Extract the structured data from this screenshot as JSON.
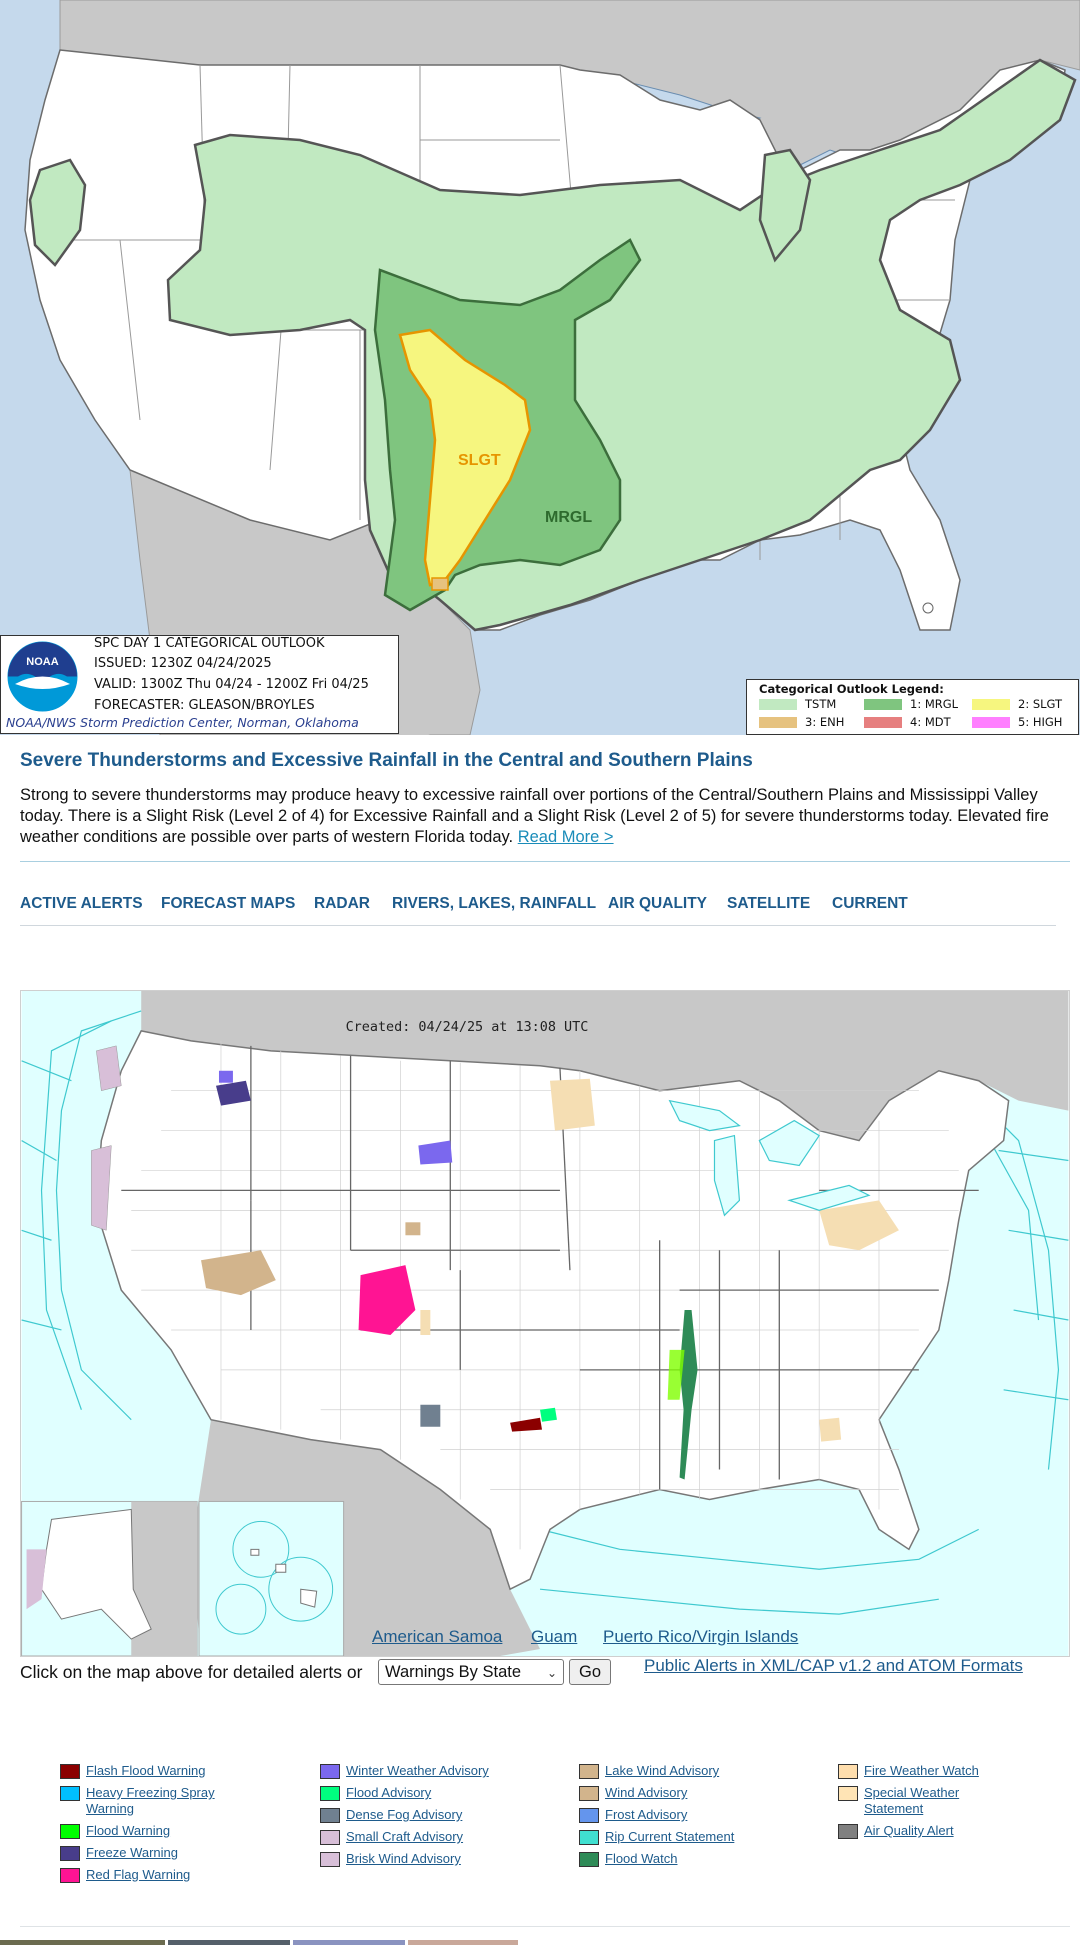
{
  "spc": {
    "logo_text": "NOAA",
    "title": "SPC DAY 1 CATEGORICAL OUTLOOK",
    "issued": "ISSUED: 1230Z 04/24/2025",
    "valid": "VALID: 1300Z Thu 04/24 - 1200Z Fri 04/25",
    "forecaster": "FORECASTER: GLEASON/BROYLES",
    "credit": "NOAA/NWS Storm Prediction Center, Norman, Oklahoma",
    "map_labels": {
      "slgt": "SLGT",
      "mrgl": "MRGL"
    },
    "legend": {
      "title": "Categorical Outlook Legend:",
      "items": [
        {
          "label": "TSTM",
          "color": "#c1e9c1"
        },
        {
          "label": "1: MRGL",
          "color": "#7fc57f"
        },
        {
          "label": "2: SLGT",
          "color": "#f6f67f"
        },
        {
          "label": "3: ENH",
          "color": "#e6c27f"
        },
        {
          "label": "4: MDT",
          "color": "#e67f7f"
        },
        {
          "label": "5: HIGH",
          "color": "#ff7fff"
        }
      ]
    }
  },
  "headline": {
    "title": "Severe Thunderstorms and Excessive Rainfall in the Central and Southern Plains",
    "summary": "Strong to severe thunderstorms may produce heavy to excessive rainfall over portions of the Central/Southern Plains and Mississippi Valley today. There is a Slight Risk (Level 2 of 4) for Excessive Rainfall and a Slight Risk (Level 2 of 5) for severe thunderstorms today. Elevated fire weather conditions are possible over parts of western Florida today.",
    "read_more": "Read More >"
  },
  "nav": {
    "items": [
      "ACTIVE ALERTS",
      "FORECAST MAPS",
      "RADAR",
      "RIVERS, LAKES, RAINFALL",
      "AIR QUALITY",
      "SATELLITE",
      "CURRENT"
    ]
  },
  "hazards_map": {
    "created": "Created: 04/24/25 at 13:08 UTC",
    "territory_links": [
      "American Samoa",
      "Guam",
      "Puerto Rico/Virgin Islands"
    ]
  },
  "controls": {
    "click_text": "Click on the map above for detailed alerts or",
    "select_value": "Warnings By State",
    "go_label": "Go",
    "cap_link": "Public Alerts in XML/CAP v1.2 and ATOM Formats"
  },
  "legend_columns": [
    [
      {
        "label": "Flash Flood Warning",
        "color": "#8b0000"
      },
      {
        "label": "Heavy Freezing Spray Warning",
        "color": "#00bfff"
      },
      {
        "label": "Flood Warning",
        "color": "#00ff00"
      },
      {
        "label": "Freeze Warning",
        "color": "#483d8b"
      },
      {
        "label": "Red Flag Warning",
        "color": "#ff1493"
      }
    ],
    [
      {
        "label": "Winter Weather Advisory",
        "color": "#7b68ee"
      },
      {
        "label": "Flood Advisory",
        "color": "#00ff7f"
      },
      {
        "label": "Dense Fog Advisory",
        "color": "#708090"
      },
      {
        "label": "Small Craft Advisory",
        "color": "#d8bfd8"
      },
      {
        "label": "Brisk Wind Advisory",
        "color": "#d8bfd8"
      }
    ],
    [
      {
        "label": "Lake Wind Advisory",
        "color": "#d2b48c"
      },
      {
        "label": "Wind Advisory",
        "color": "#d2b48c"
      },
      {
        "label": "Frost Advisory",
        "color": "#6495ed"
      },
      {
        "label": "Rip Current Statement",
        "color": "#40e0d0"
      },
      {
        "label": "Flood Watch",
        "color": "#2e8b57"
      }
    ],
    [
      {
        "label": "Fire Weather Watch",
        "color": "#ffdead"
      },
      {
        "label": "Special Weather Statement",
        "color": "#ffe4b5"
      },
      {
        "label": "Air Quality Alert",
        "color": "#808080"
      }
    ]
  ]
}
